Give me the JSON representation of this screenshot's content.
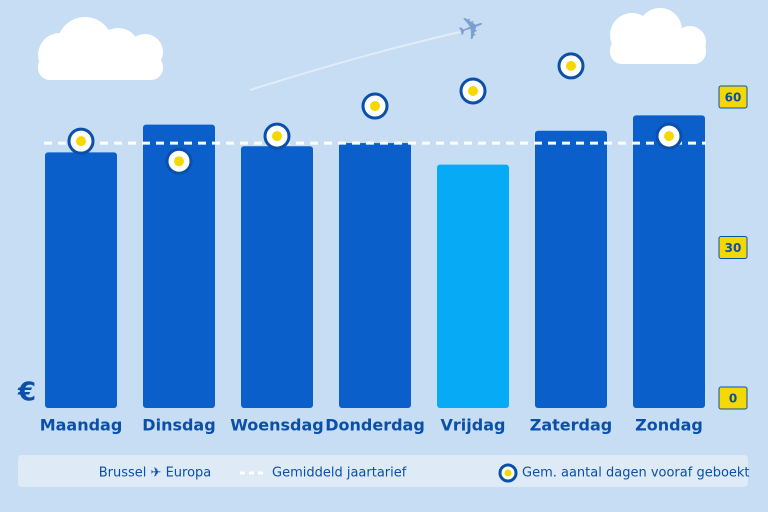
{
  "chart_data": {
    "type": "bar",
    "ylabel": "€",
    "categories": [
      "Maandag",
      "Dinsdag",
      "Woensdag",
      "Donderdag",
      "Vrijdag",
      "Zaterdag",
      "Zondag"
    ],
    "series": [
      {
        "name": "Brussel ✈ Europa",
        "color": "#0b5fca",
        "values": [
          83,
          92,
          85,
          86,
          79,
          90,
          95
        ],
        "colors": [
          "#0b5fca",
          "#0b5fca",
          "#0b5fca",
          "#0b5fca",
          "#06aaf5",
          "#0b5fca",
          "#0b5fca"
        ]
      },
      {
        "name": "Gem. aantal dagen vooraf geboekt",
        "type": "scatter",
        "axis": "y2",
        "color": "#f5d800",
        "values": [
          51,
          47,
          52,
          58,
          61,
          66,
          52
        ]
      }
    ],
    "reference_line": {
      "name": "Gemiddeld jaartarief",
      "value": 86,
      "color": "#ffffff"
    },
    "ylim": [
      0,
      100
    ],
    "y2lim": [
      0,
      60
    ],
    "y2ticks": [
      0,
      30,
      60
    ]
  }
}
